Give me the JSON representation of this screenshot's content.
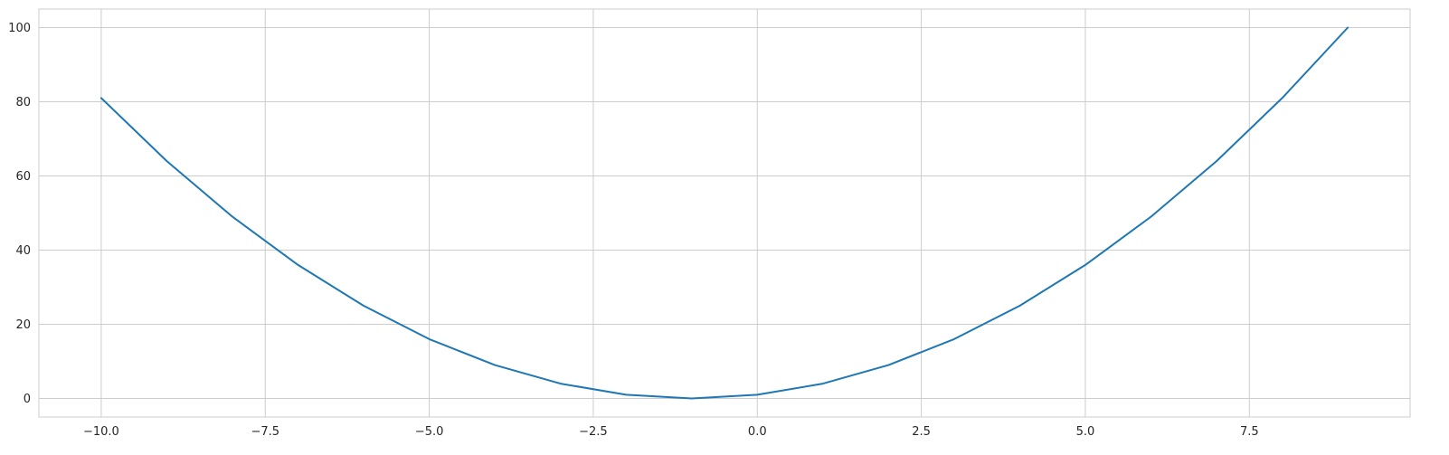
{
  "chart_data": {
    "type": "line",
    "title": "",
    "xlabel": "",
    "ylabel": "",
    "xlim": [
      -10.95,
      9.95
    ],
    "ylim": [
      -5,
      105
    ],
    "grid": true,
    "x_ticks": [
      -10.0,
      -7.5,
      -5.0,
      -2.5,
      0.0,
      2.5,
      5.0,
      7.5
    ],
    "x_tick_labels": [
      "−10.0",
      "−7.5",
      "−5.0",
      "−2.5",
      "0.0",
      "2.5",
      "5.0",
      "7.5"
    ],
    "y_ticks": [
      0,
      20,
      40,
      60,
      80,
      100
    ],
    "y_tick_labels": [
      "0",
      "20",
      "40",
      "60",
      "80",
      "100"
    ],
    "series": [
      {
        "color": "#1f77b4",
        "x": [
          -10,
          -9,
          -8,
          -7,
          -6,
          -5,
          -4,
          -3,
          -2,
          -1,
          0,
          1,
          2,
          3,
          4,
          5,
          6,
          7,
          8,
          9
        ],
        "y": [
          81,
          64,
          49,
          36,
          25,
          16,
          9,
          4,
          1,
          0,
          1,
          4,
          9,
          16,
          25,
          36,
          49,
          64,
          81,
          100
        ]
      }
    ]
  }
}
